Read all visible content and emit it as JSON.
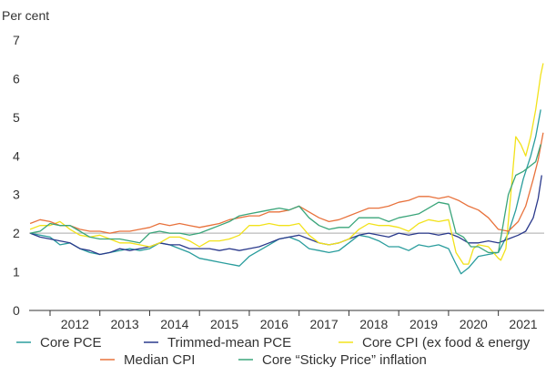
{
  "chart_data": {
    "type": "line",
    "title": "",
    "ylabel": "Per cent",
    "xlabel": "",
    "ylim": [
      0,
      7
    ],
    "yticks": [
      0,
      1,
      2,
      3,
      4,
      5,
      6,
      7
    ],
    "xlim": [
      2011.58,
      2021.92
    ],
    "xtick_labels": [
      "2012",
      "2013",
      "2014",
      "2015",
      "2016",
      "2017",
      "2018",
      "2019",
      "2020",
      "2021"
    ],
    "reference_line": 2,
    "grid": false,
    "legend_position": "bottom",
    "series": [
      {
        "name": "Core PCE",
        "color": "#2a9d9d",
        "points": [
          [
            2011.6,
            2.0
          ],
          [
            2011.8,
            1.95
          ],
          [
            2012.0,
            1.9
          ],
          [
            2012.2,
            1.7
          ],
          [
            2012.4,
            1.75
          ],
          [
            2012.6,
            1.6
          ],
          [
            2012.8,
            1.5
          ],
          [
            2013.0,
            1.45
          ],
          [
            2013.2,
            1.5
          ],
          [
            2013.4,
            1.55
          ],
          [
            2013.6,
            1.6
          ],
          [
            2013.8,
            1.55
          ],
          [
            2014.0,
            1.6
          ],
          [
            2014.2,
            1.75
          ],
          [
            2014.4,
            1.7
          ],
          [
            2014.6,
            1.6
          ],
          [
            2014.8,
            1.5
          ],
          [
            2015.0,
            1.35
          ],
          [
            2015.2,
            1.3
          ],
          [
            2015.4,
            1.25
          ],
          [
            2015.6,
            1.2
          ],
          [
            2015.8,
            1.15
          ],
          [
            2016.0,
            1.4
          ],
          [
            2016.2,
            1.55
          ],
          [
            2016.4,
            1.7
          ],
          [
            2016.6,
            1.85
          ],
          [
            2016.8,
            1.9
          ],
          [
            2017.0,
            1.8
          ],
          [
            2017.2,
            1.6
          ],
          [
            2017.4,
            1.55
          ],
          [
            2017.6,
            1.5
          ],
          [
            2017.8,
            1.55
          ],
          [
            2018.0,
            1.75
          ],
          [
            2018.2,
            1.95
          ],
          [
            2018.4,
            1.9
          ],
          [
            2018.6,
            1.8
          ],
          [
            2018.8,
            1.65
          ],
          [
            2019.0,
            1.65
          ],
          [
            2019.2,
            1.55
          ],
          [
            2019.4,
            1.7
          ],
          [
            2019.6,
            1.65
          ],
          [
            2019.8,
            1.7
          ],
          [
            2020.0,
            1.6
          ],
          [
            2020.15,
            1.2
          ],
          [
            2020.25,
            0.95
          ],
          [
            2020.4,
            1.1
          ],
          [
            2020.6,
            1.4
          ],
          [
            2020.8,
            1.45
          ],
          [
            2021.0,
            1.5
          ],
          [
            2021.2,
            2.0
          ],
          [
            2021.35,
            2.6
          ],
          [
            2021.5,
            3.4
          ],
          [
            2021.65,
            4.0
          ],
          [
            2021.75,
            4.5
          ],
          [
            2021.85,
            5.2
          ]
        ]
      },
      {
        "name": "Trimmed-mean PCE",
        "color": "#2b3a8c",
        "points": [
          [
            2011.6,
            2.0
          ],
          [
            2011.8,
            1.9
          ],
          [
            2012.0,
            1.85
          ],
          [
            2012.2,
            1.8
          ],
          [
            2012.4,
            1.75
          ],
          [
            2012.6,
            1.6
          ],
          [
            2012.8,
            1.55
          ],
          [
            2013.0,
            1.45
          ],
          [
            2013.2,
            1.5
          ],
          [
            2013.4,
            1.6
          ],
          [
            2013.6,
            1.55
          ],
          [
            2013.8,
            1.6
          ],
          [
            2014.0,
            1.65
          ],
          [
            2014.2,
            1.75
          ],
          [
            2014.4,
            1.7
          ],
          [
            2014.6,
            1.7
          ],
          [
            2014.8,
            1.6
          ],
          [
            2015.0,
            1.6
          ],
          [
            2015.2,
            1.6
          ],
          [
            2015.4,
            1.55
          ],
          [
            2015.6,
            1.6
          ],
          [
            2015.8,
            1.55
          ],
          [
            2016.0,
            1.6
          ],
          [
            2016.2,
            1.65
          ],
          [
            2016.4,
            1.75
          ],
          [
            2016.6,
            1.85
          ],
          [
            2016.8,
            1.9
          ],
          [
            2017.0,
            1.95
          ],
          [
            2017.2,
            1.85
          ],
          [
            2017.4,
            1.75
          ],
          [
            2017.6,
            1.7
          ],
          [
            2017.8,
            1.75
          ],
          [
            2018.0,
            1.85
          ],
          [
            2018.2,
            1.95
          ],
          [
            2018.4,
            2.0
          ],
          [
            2018.6,
            1.95
          ],
          [
            2018.8,
            1.9
          ],
          [
            2019.0,
            2.0
          ],
          [
            2019.2,
            1.95
          ],
          [
            2019.4,
            2.0
          ],
          [
            2019.6,
            2.0
          ],
          [
            2019.8,
            1.95
          ],
          [
            2020.0,
            2.0
          ],
          [
            2020.2,
            1.9
          ],
          [
            2020.4,
            1.75
          ],
          [
            2020.6,
            1.75
          ],
          [
            2020.8,
            1.8
          ],
          [
            2021.0,
            1.75
          ],
          [
            2021.2,
            1.85
          ],
          [
            2021.4,
            1.95
          ],
          [
            2021.55,
            2.05
          ],
          [
            2021.7,
            2.4
          ],
          [
            2021.8,
            2.9
          ],
          [
            2021.87,
            3.5
          ]
        ]
      },
      {
        "name": "Core CPI (ex food & energy",
        "color": "#f2e21a",
        "points": [
          [
            2011.6,
            2.1
          ],
          [
            2011.8,
            2.2
          ],
          [
            2012.0,
            2.2
          ],
          [
            2012.2,
            2.3
          ],
          [
            2012.4,
            2.1
          ],
          [
            2012.6,
            1.95
          ],
          [
            2012.8,
            1.9
          ],
          [
            2013.0,
            1.95
          ],
          [
            2013.2,
            1.85
          ],
          [
            2013.4,
            1.75
          ],
          [
            2013.6,
            1.75
          ],
          [
            2013.8,
            1.7
          ],
          [
            2014.0,
            1.65
          ],
          [
            2014.2,
            1.75
          ],
          [
            2014.4,
            1.9
          ],
          [
            2014.6,
            1.9
          ],
          [
            2014.8,
            1.8
          ],
          [
            2015.0,
            1.65
          ],
          [
            2015.2,
            1.8
          ],
          [
            2015.4,
            1.8
          ],
          [
            2015.6,
            1.85
          ],
          [
            2015.8,
            1.95
          ],
          [
            2016.0,
            2.2
          ],
          [
            2016.2,
            2.2
          ],
          [
            2016.4,
            2.25
          ],
          [
            2016.6,
            2.2
          ],
          [
            2016.8,
            2.2
          ],
          [
            2017.0,
            2.25
          ],
          [
            2017.2,
            1.95
          ],
          [
            2017.4,
            1.75
          ],
          [
            2017.6,
            1.7
          ],
          [
            2017.8,
            1.75
          ],
          [
            2018.0,
            1.85
          ],
          [
            2018.2,
            2.1
          ],
          [
            2018.4,
            2.25
          ],
          [
            2018.6,
            2.2
          ],
          [
            2018.8,
            2.2
          ],
          [
            2019.0,
            2.15
          ],
          [
            2019.2,
            2.05
          ],
          [
            2019.4,
            2.25
          ],
          [
            2019.6,
            2.35
          ],
          [
            2019.8,
            2.3
          ],
          [
            2020.0,
            2.35
          ],
          [
            2020.15,
            1.5
          ],
          [
            2020.3,
            1.2
          ],
          [
            2020.4,
            1.2
          ],
          [
            2020.5,
            1.6
          ],
          [
            2020.6,
            1.7
          ],
          [
            2020.8,
            1.65
          ],
          [
            2021.0,
            1.35
          ],
          [
            2021.05,
            1.3
          ],
          [
            2021.15,
            1.6
          ],
          [
            2021.25,
            3.0
          ],
          [
            2021.35,
            4.5
          ],
          [
            2021.45,
            4.3
          ],
          [
            2021.55,
            4.0
          ],
          [
            2021.65,
            4.5
          ],
          [
            2021.75,
            5.2
          ],
          [
            2021.85,
            6.1
          ],
          [
            2021.9,
            6.4
          ]
        ]
      },
      {
        "name": "Median CPI",
        "color": "#e8723c",
        "points": [
          [
            2011.6,
            2.25
          ],
          [
            2011.8,
            2.35
          ],
          [
            2012.0,
            2.3
          ],
          [
            2012.2,
            2.2
          ],
          [
            2012.4,
            2.2
          ],
          [
            2012.6,
            2.1
          ],
          [
            2012.8,
            2.05
          ],
          [
            2013.0,
            2.05
          ],
          [
            2013.2,
            2.0
          ],
          [
            2013.4,
            2.05
          ],
          [
            2013.6,
            2.05
          ],
          [
            2013.8,
            2.1
          ],
          [
            2014.0,
            2.15
          ],
          [
            2014.2,
            2.25
          ],
          [
            2014.4,
            2.2
          ],
          [
            2014.6,
            2.25
          ],
          [
            2014.8,
            2.2
          ],
          [
            2015.0,
            2.15
          ],
          [
            2015.2,
            2.2
          ],
          [
            2015.4,
            2.25
          ],
          [
            2015.6,
            2.35
          ],
          [
            2015.8,
            2.4
          ],
          [
            2016.0,
            2.45
          ],
          [
            2016.2,
            2.45
          ],
          [
            2016.4,
            2.55
          ],
          [
            2016.6,
            2.55
          ],
          [
            2016.8,
            2.6
          ],
          [
            2017.0,
            2.7
          ],
          [
            2017.2,
            2.55
          ],
          [
            2017.4,
            2.4
          ],
          [
            2017.6,
            2.3
          ],
          [
            2017.8,
            2.35
          ],
          [
            2018.0,
            2.45
          ],
          [
            2018.2,
            2.55
          ],
          [
            2018.4,
            2.65
          ],
          [
            2018.6,
            2.65
          ],
          [
            2018.8,
            2.7
          ],
          [
            2019.0,
            2.8
          ],
          [
            2019.2,
            2.85
          ],
          [
            2019.4,
            2.95
          ],
          [
            2019.6,
            2.95
          ],
          [
            2019.8,
            2.9
          ],
          [
            2020.0,
            2.95
          ],
          [
            2020.2,
            2.85
          ],
          [
            2020.4,
            2.7
          ],
          [
            2020.6,
            2.6
          ],
          [
            2020.8,
            2.4
          ],
          [
            2021.0,
            2.1
          ],
          [
            2021.2,
            2.05
          ],
          [
            2021.4,
            2.3
          ],
          [
            2021.55,
            2.7
          ],
          [
            2021.7,
            3.4
          ],
          [
            2021.8,
            3.9
          ],
          [
            2021.9,
            4.6
          ]
        ]
      },
      {
        "name": "Core “Sticky Price” inflation",
        "color": "#3aa57a",
        "points": [
          [
            2011.6,
            2.0
          ],
          [
            2011.8,
            2.05
          ],
          [
            2012.0,
            2.25
          ],
          [
            2012.2,
            2.2
          ],
          [
            2012.4,
            2.2
          ],
          [
            2012.6,
            2.05
          ],
          [
            2012.8,
            1.9
          ],
          [
            2013.0,
            1.85
          ],
          [
            2013.2,
            1.85
          ],
          [
            2013.4,
            1.85
          ],
          [
            2013.6,
            1.8
          ],
          [
            2013.8,
            1.75
          ],
          [
            2014.0,
            2.0
          ],
          [
            2014.2,
            2.05
          ],
          [
            2014.4,
            2.0
          ],
          [
            2014.6,
            2.0
          ],
          [
            2014.8,
            1.95
          ],
          [
            2015.0,
            2.0
          ],
          [
            2015.2,
            2.1
          ],
          [
            2015.4,
            2.2
          ],
          [
            2015.6,
            2.3
          ],
          [
            2015.8,
            2.45
          ],
          [
            2016.0,
            2.5
          ],
          [
            2016.2,
            2.55
          ],
          [
            2016.4,
            2.6
          ],
          [
            2016.6,
            2.65
          ],
          [
            2016.8,
            2.6
          ],
          [
            2017.0,
            2.7
          ],
          [
            2017.2,
            2.4
          ],
          [
            2017.4,
            2.2
          ],
          [
            2017.6,
            2.1
          ],
          [
            2017.8,
            2.15
          ],
          [
            2018.0,
            2.15
          ],
          [
            2018.2,
            2.4
          ],
          [
            2018.4,
            2.4
          ],
          [
            2018.6,
            2.4
          ],
          [
            2018.8,
            2.3
          ],
          [
            2019.0,
            2.4
          ],
          [
            2019.2,
            2.45
          ],
          [
            2019.4,
            2.5
          ],
          [
            2019.6,
            2.65
          ],
          [
            2019.8,
            2.8
          ],
          [
            2020.0,
            2.75
          ],
          [
            2020.15,
            2.0
          ],
          [
            2020.3,
            1.9
          ],
          [
            2020.45,
            1.65
          ],
          [
            2020.6,
            1.65
          ],
          [
            2020.8,
            1.5
          ],
          [
            2021.0,
            1.5
          ],
          [
            2021.2,
            3.0
          ],
          [
            2021.35,
            3.5
          ],
          [
            2021.5,
            3.6
          ],
          [
            2021.6,
            3.7
          ],
          [
            2021.75,
            3.85
          ],
          [
            2021.85,
            4.3
          ]
        ]
      }
    ]
  }
}
